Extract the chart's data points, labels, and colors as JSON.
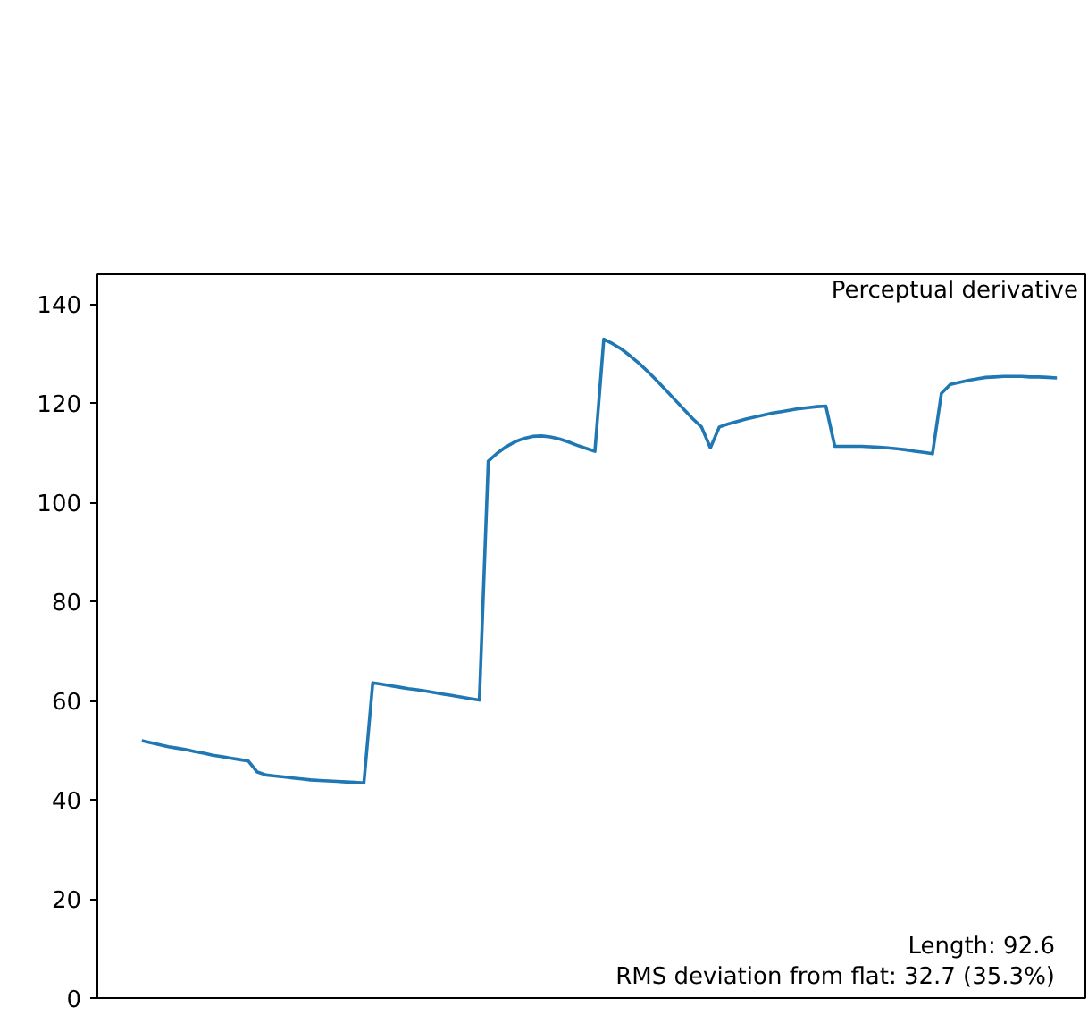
{
  "chart_data": {
    "type": "line",
    "title": "Perceptual derivative",
    "categories": [
      null,
      null,
      null,
      null,
      null,
      null,
      null,
      null,
      null,
      null,
      null,
      null,
      null,
      null,
      null,
      null,
      null,
      null,
      null,
      null,
      null,
      null,
      null,
      null,
      null,
      null,
      null,
      null,
      null,
      null,
      null,
      null,
      null,
      null,
      null,
      null,
      null,
      null,
      null,
      null,
      null,
      null,
      null,
      null,
      null,
      null,
      null,
      null,
      null,
      null,
      null,
      null,
      null,
      null,
      null,
      null,
      null,
      null,
      null,
      null,
      null,
      null,
      null,
      null,
      null,
      null,
      null,
      null,
      null,
      null,
      null,
      null,
      null,
      null,
      null,
      null,
      null,
      null,
      null,
      null,
      null,
      null,
      null,
      null,
      null,
      null,
      null,
      null,
      null,
      null,
      null,
      null,
      null,
      null,
      null,
      null,
      null,
      null,
      null,
      null,
      null,
      null,
      null,
      null
    ],
    "series": [
      {
        "color": "#1f77b4",
        "values": [
          51.9,
          51.5,
          51.1,
          50.7,
          50.4,
          50.1,
          49.7,
          49.4,
          49.0,
          48.7,
          48.4,
          48.1,
          47.8,
          45.6,
          45.0,
          44.8,
          44.6,
          44.4,
          44.2,
          44.0,
          43.9,
          43.8,
          43.7,
          43.6,
          43.5,
          43.4,
          63.6,
          63.3,
          63.0,
          62.7,
          62.4,
          62.2,
          61.9,
          61.6,
          61.3,
          61.0,
          60.7,
          60.4,
          60.1,
          108.3,
          109.9,
          111.2,
          112.2,
          112.9,
          113.3,
          113.4,
          113.2,
          112.8,
          112.2,
          111.5,
          110.9,
          110.3,
          132.9,
          132.0,
          130.9,
          129.5,
          128.0,
          126.3,
          124.5,
          122.6,
          120.7,
          118.8,
          116.9,
          115.2,
          111.0,
          115.2,
          115.8,
          116.3,
          116.8,
          117.2,
          117.6,
          118.0,
          118.3,
          118.6,
          118.9,
          119.1,
          119.3,
          119.4,
          111.3,
          111.3,
          111.3,
          111.3,
          111.2,
          111.1,
          111.0,
          110.8,
          110.6,
          110.3,
          110.1,
          109.8,
          122.0,
          123.8,
          124.2,
          124.6,
          124.9,
          125.2,
          125.3,
          125.4,
          125.4,
          125.4,
          125.3,
          125.3,
          125.2,
          125.1
        ]
      }
    ],
    "annotations": [
      "Length: 92.6",
      "RMS deviation from flat: 32.7 (35.3%)"
    ],
    "ylim": [
      0,
      146
    ],
    "yticks": [
      0,
      20,
      40,
      60,
      80,
      100,
      120,
      140
    ],
    "tick_labels": "y",
    "grid": false,
    "marker": "none",
    "line_style": "solid"
  }
}
